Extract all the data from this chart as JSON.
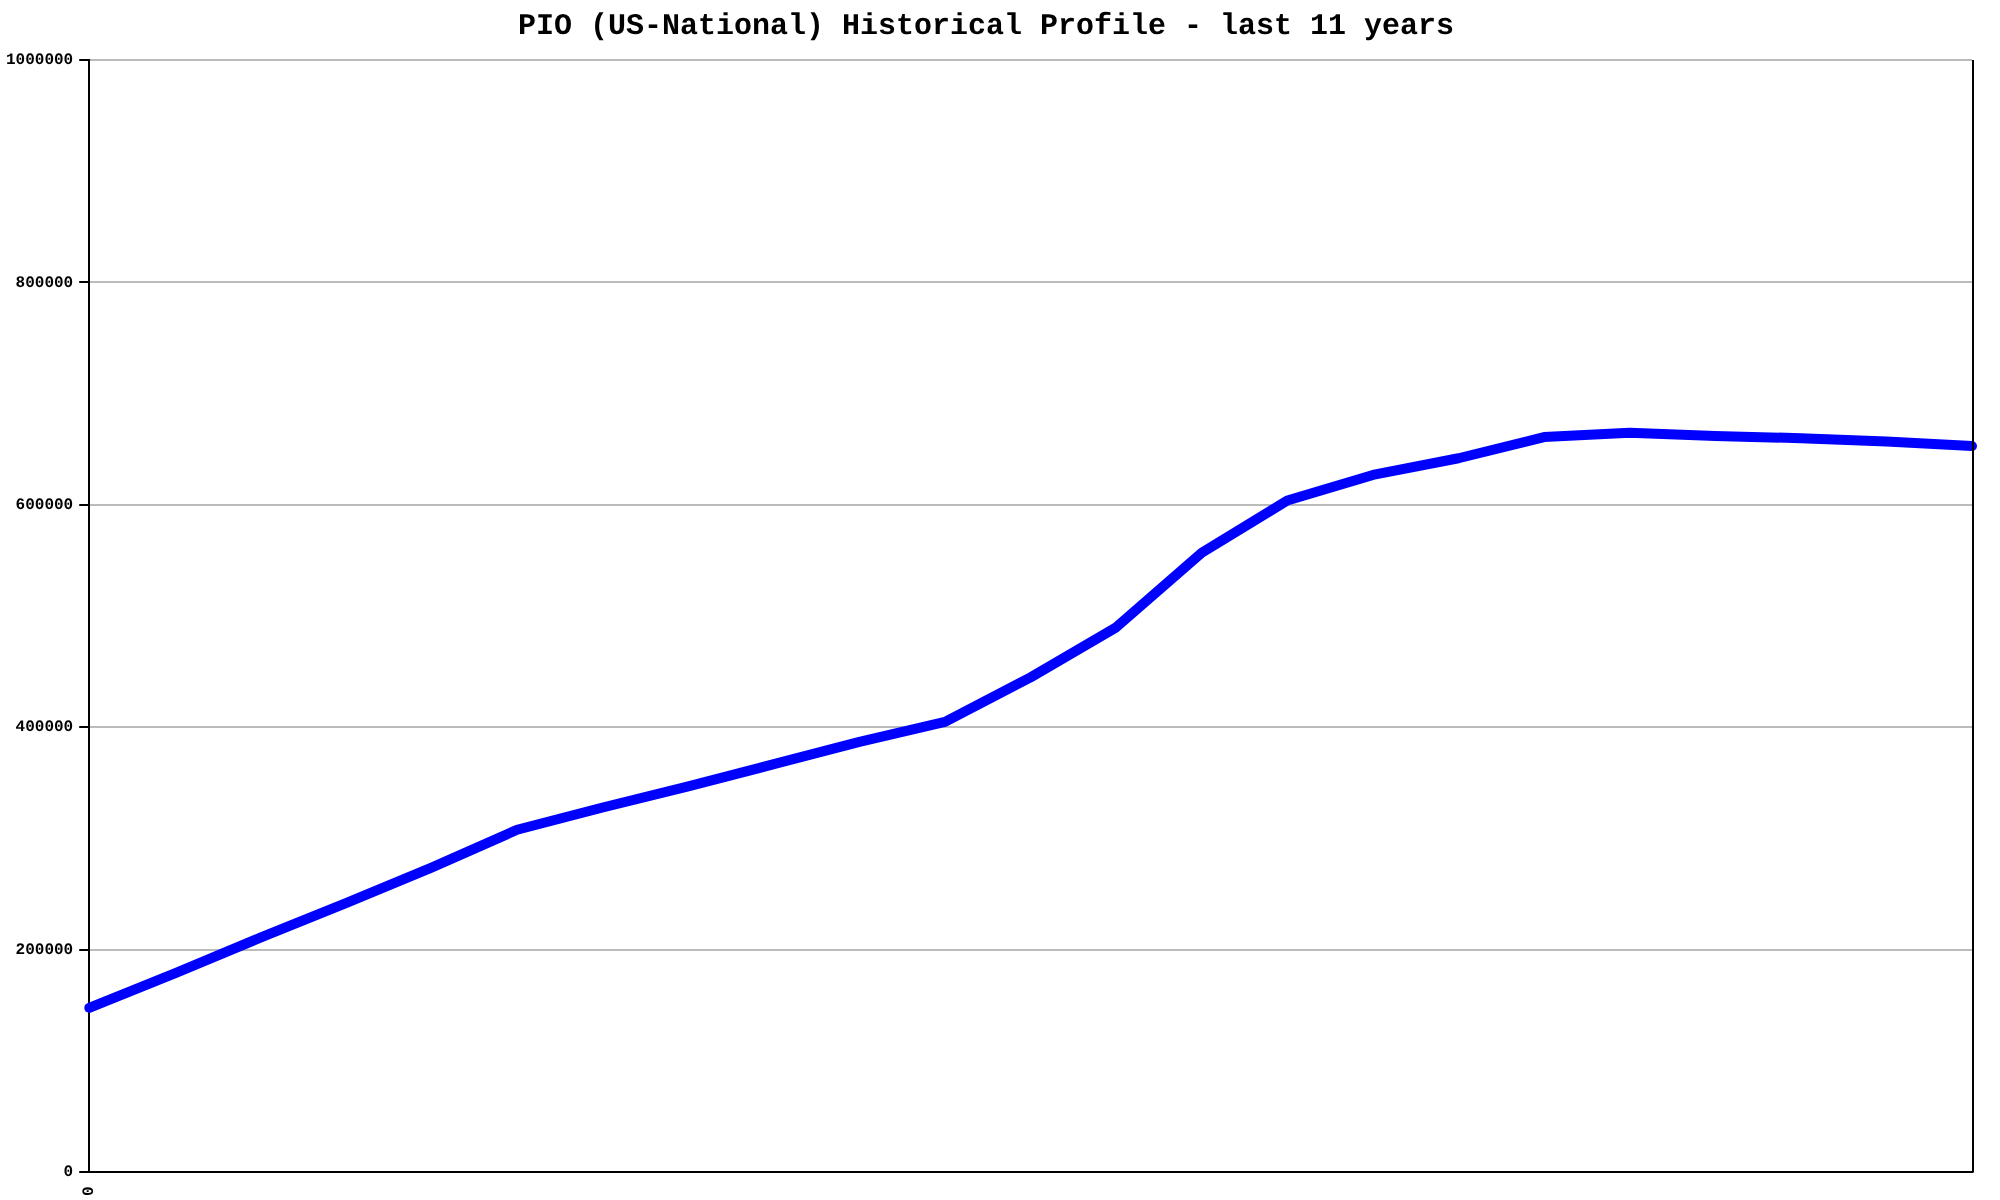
{
  "chart_data": {
    "type": "line",
    "title": "PIO (US-National) Historical Profile - last 11 years",
    "categories": [
      "0",
      null,
      null,
      null,
      null,
      null,
      null,
      null,
      null,
      null,
      null,
      null,
      null,
      null,
      null,
      null,
      null,
      null,
      null,
      null,
      null,
      null,
      null
    ],
    "series": [
      {
        "color": "#0000ff",
        "values": [
          148000,
          179000,
          211000,
          242000,
          274000,
          308000,
          328000,
          347000,
          367000,
          387000,
          405000,
          445000,
          490000,
          557000,
          604000,
          627000,
          642000,
          661000,
          665000,
          662000,
          660000,
          657000,
          653000
        ]
      }
    ],
    "ylim": [
      0,
      1000000
    ],
    "yticks": [
      0,
      200000,
      400000,
      600000,
      800000,
      1000000
    ],
    "grid": "y",
    "legend": false,
    "marker": "none",
    "line_style": "solid"
  }
}
